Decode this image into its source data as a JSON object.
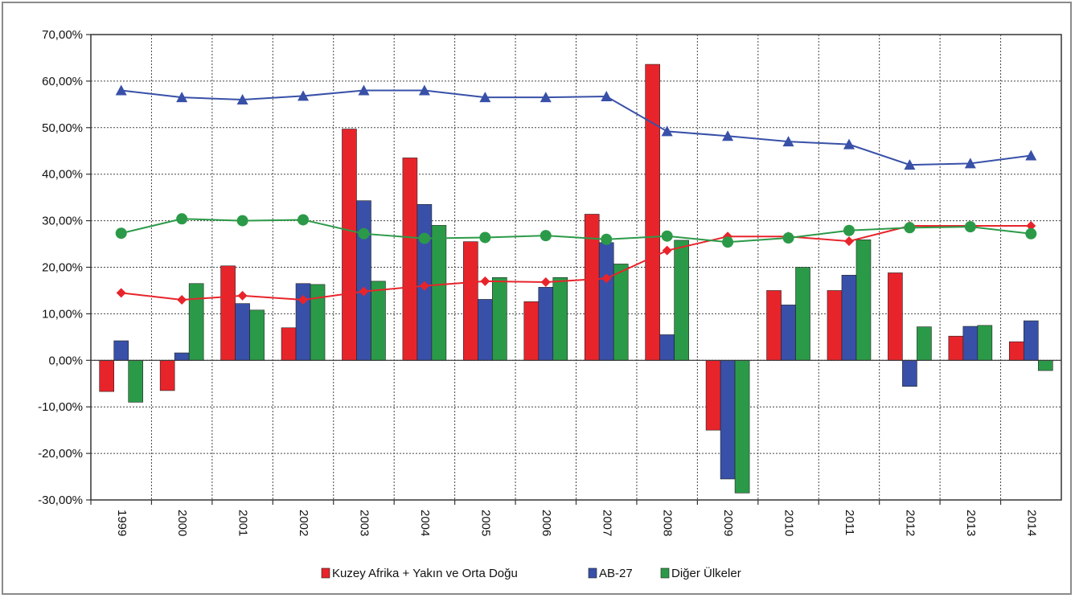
{
  "chart_data": {
    "type": "bar",
    "title": "",
    "xlabel": "",
    "ylabel": "",
    "categories": [
      "1999",
      "2000",
      "2001",
      "2002",
      "2003",
      "2004",
      "2005",
      "2006",
      "2007",
      "2008",
      "2009",
      "2010",
      "2011",
      "2012",
      "2013",
      "2014"
    ],
    "ylim": [
      -30,
      70
    ],
    "ytick_values": [
      -30,
      -20,
      -10,
      0,
      10,
      20,
      30,
      40,
      50,
      60,
      70
    ],
    "ytick_labels": [
      "-30,00%",
      "-20,00%",
      "-10,00%",
      "0,00%",
      "10,00%",
      "20,00%",
      "30,00%",
      "40,00%",
      "50,00%",
      "60,00%",
      "70,00%"
    ],
    "grid": true,
    "legend_position": "bottom",
    "bar_series": [
      {
        "name": "Kuzey Afrika + Yakın  ve Orta Doğu",
        "color": "#e8242b",
        "values": [
          -6.7,
          -6.5,
          20.3,
          7.0,
          49.7,
          43.5,
          25.5,
          12.6,
          31.4,
          63.6,
          -15.0,
          15.0,
          15.0,
          18.8,
          5.2,
          4.0
        ]
      },
      {
        "name": "AB-27",
        "color": "#3850a8",
        "values": [
          4.2,
          1.6,
          12.2,
          16.5,
          34.3,
          33.5,
          13.1,
          15.7,
          25.3,
          5.5,
          -25.5,
          11.9,
          18.3,
          -5.6,
          7.3,
          8.5
        ]
      },
      {
        "name": "Diğer Ülkeler",
        "color": "#2b9a48",
        "values": [
          -9.0,
          16.5,
          10.8,
          16.3,
          17.0,
          29.0,
          17.8,
          17.8,
          20.7,
          25.8,
          -28.5,
          20.0,
          25.9,
          7.2,
          7.5,
          -2.2
        ]
      }
    ],
    "line_series": [
      {
        "marker": "diamond",
        "color": "#e8242b",
        "values": [
          14.5,
          13.0,
          13.9,
          13.0,
          14.8,
          16.0,
          17.0,
          16.8,
          17.6,
          23.6,
          26.6,
          26.6,
          25.6,
          28.9,
          28.9,
          28.9
        ]
      },
      {
        "marker": "triangle",
        "color": "#3850a8",
        "values": [
          58.0,
          56.5,
          56.0,
          56.8,
          58.0,
          58.0,
          56.5,
          56.5,
          56.7,
          49.2,
          48.2,
          47.0,
          46.4,
          42.0,
          42.3,
          44.0
        ]
      },
      {
        "marker": "circle",
        "color": "#2b9a48",
        "values": [
          27.3,
          30.4,
          30.0,
          30.2,
          27.2,
          26.2,
          26.4,
          26.8,
          26.0,
          26.7,
          25.4,
          26.3,
          27.9,
          28.5,
          28.7,
          27.2
        ]
      }
    ]
  }
}
